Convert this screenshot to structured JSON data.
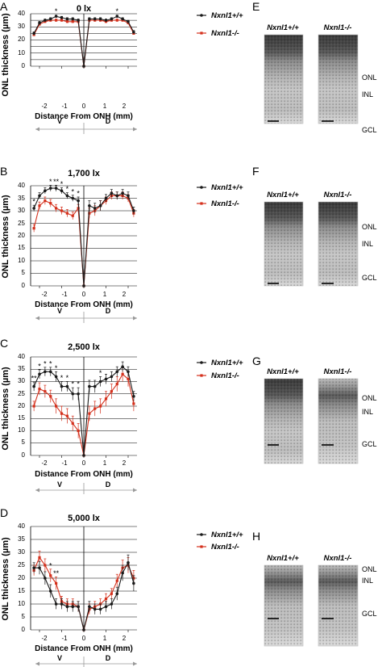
{
  "figure": {
    "ylabel": "ONL thickness (µm)",
    "xlabel": "Distance From ONH (mm)",
    "region_v": "V",
    "region_d": "D",
    "legend_wt": "Nxnl1+/+",
    "legend_ko": "Nxnl1-/-",
    "colors": {
      "wt": "#1a1a1a",
      "ko": "#d4301c"
    }
  },
  "chart_data": [
    {
      "type": "line",
      "panel": "A",
      "title": "0 lx",
      "xlabel": "Distance From ONH (mm)",
      "ylabel": "ONL thickness (µm)",
      "xlim": [
        -2.4,
        2.4
      ],
      "ylim": [
        0,
        40
      ],
      "yticks": [
        0,
        5,
        10,
        15,
        20,
        25,
        30,
        35,
        40
      ],
      "xticks": [
        -2,
        -1,
        0,
        1,
        2
      ],
      "x": [
        -2.25,
        -2.0,
        -1.75,
        -1.5,
        -1.25,
        -1.0,
        -0.75,
        -0.5,
        -0.25,
        0,
        0.25,
        0.5,
        0.75,
        1.0,
        1.25,
        1.5,
        1.75,
        2.0,
        2.25
      ],
      "series": [
        {
          "name": "Nxnl1+/+",
          "values": [
            25,
            33,
            35,
            36,
            38,
            37,
            36,
            36,
            35,
            0,
            36,
            36,
            36,
            35,
            36,
            38,
            36,
            34,
            26
          ],
          "err": [
            1.2,
            1.2,
            1.0,
            1.0,
            1.0,
            1.0,
            1.0,
            1.0,
            1.0,
            0,
            1.0,
            1.0,
            1.0,
            1.0,
            1.0,
            1.0,
            1.0,
            1.0,
            1.2
          ]
        },
        {
          "name": "Nxnl1-/-",
          "values": [
            24,
            32,
            34,
            35,
            35,
            35,
            34,
            34,
            34,
            0,
            35,
            35,
            35,
            34,
            35,
            35,
            35,
            33,
            25
          ],
          "err": [
            1.0,
            1.0,
            1.0,
            1.0,
            1.0,
            1.0,
            1.0,
            1.0,
            1.0,
            0,
            1.0,
            1.0,
            1.0,
            1.0,
            1.0,
            1.0,
            1.0,
            1.0,
            1.0
          ]
        }
      ],
      "annotations": [
        {
          "x": -1.25,
          "text": "*"
        },
        {
          "x": 1.5,
          "text": "*"
        }
      ],
      "legend": "top-right"
    },
    {
      "type": "line",
      "panel": "B",
      "title": "1,700 lx",
      "xlabel": "Distance From ONH (mm)",
      "ylabel": "ONL thickness (µm)",
      "xlim": [
        -2.4,
        2.4
      ],
      "ylim": [
        0,
        40
      ],
      "yticks": [
        0,
        5,
        10,
        15,
        20,
        25,
        30,
        35,
        40
      ],
      "xticks": [
        -2,
        -1,
        0,
        1,
        2
      ],
      "x": [
        -2.25,
        -2.0,
        -1.75,
        -1.5,
        -1.25,
        -1.0,
        -0.75,
        -0.5,
        -0.25,
        0,
        0.25,
        0.5,
        0.75,
        1.0,
        1.25,
        1.5,
        1.75,
        2.0,
        2.25
      ],
      "series": [
        {
          "name": "Nxnl1+/+",
          "values": [
            31,
            36,
            38,
            39,
            39,
            38,
            36,
            35,
            34,
            0,
            32,
            31,
            32,
            35,
            37,
            36,
            37,
            36,
            30
          ],
          "err": [
            1.2,
            1.2,
            1.2,
            1.2,
            1.2,
            1.2,
            1.2,
            1.2,
            1.5,
            0,
            2.0,
            2.0,
            2.0,
            1.5,
            1.5,
            1.5,
            1.5,
            1.5,
            1.5
          ]
        },
        {
          "name": "Nxnl1-/-",
          "values": [
            23,
            32,
            34,
            33,
            31,
            30,
            29,
            28,
            31,
            0,
            29,
            30,
            32,
            34,
            36,
            36,
            36,
            35,
            29
          ],
          "err": [
            1.5,
            1.5,
            1.5,
            1.5,
            1.5,
            1.5,
            1.5,
            1.5,
            1.5,
            0,
            2.0,
            2.0,
            2.0,
            1.5,
            1.5,
            1.5,
            1.5,
            1.5,
            1.5
          ]
        }
      ],
      "annotations": [
        {
          "x": -2.25,
          "text": "*"
        },
        {
          "x": -1.5,
          "text": "*"
        },
        {
          "x": -1.25,
          "text": "**"
        },
        {
          "x": -1.0,
          "text": "*"
        },
        {
          "x": -0.75,
          "text": "*"
        },
        {
          "x": -0.5,
          "text": "*"
        },
        {
          "x": -0.25,
          "text": "*"
        }
      ],
      "legend": "top-right"
    },
    {
      "type": "line",
      "panel": "C",
      "title": "2,500 lx",
      "xlabel": "Distance From ONH (mm)",
      "ylabel": "ONL thickness (µm)",
      "xlim": [
        -2.4,
        2.4
      ],
      "ylim": [
        0,
        40
      ],
      "yticks": [
        0,
        5,
        10,
        15,
        20,
        25,
        30,
        35,
        40
      ],
      "xticks": [
        -2,
        -1,
        0,
        1,
        2
      ],
      "x": [
        -2.25,
        -2.0,
        -1.75,
        -1.5,
        -1.25,
        -1.0,
        -0.75,
        -0.5,
        -0.25,
        0,
        0.25,
        0.5,
        0.75,
        1.0,
        1.25,
        1.5,
        1.75,
        2.0,
        2.25
      ],
      "series": [
        {
          "name": "Nxnl1+/+",
          "values": [
            28,
            33,
            34,
            34,
            32,
            28,
            28,
            25,
            25,
            0,
            28,
            28,
            30,
            31,
            32,
            34,
            36,
            34,
            24
          ],
          "err": [
            1.8,
            1.8,
            1.8,
            1.8,
            2.0,
            2.0,
            2.0,
            2.5,
            2.5,
            0,
            2.5,
            2.5,
            2.0,
            2.0,
            2.0,
            2.0,
            2.0,
            2.0,
            2.0
          ]
        },
        {
          "name": "Nxnl1-/-",
          "values": [
            20,
            27,
            26,
            24,
            20,
            17,
            16,
            13,
            10,
            0,
            17,
            19,
            20,
            23,
            26,
            29,
            33,
            31,
            21
          ],
          "err": [
            2.0,
            2.5,
            2.5,
            2.5,
            3.0,
            3.0,
            3.0,
            3.0,
            3.0,
            0,
            3.0,
            3.0,
            3.0,
            3.0,
            3.0,
            3.0,
            3.0,
            3.0,
            3.0
          ]
        }
      ],
      "annotations": [
        {
          "x": -2.25,
          "text": "**"
        },
        {
          "x": -2.0,
          "text": "*"
        },
        {
          "x": -1.75,
          "text": "*"
        },
        {
          "x": -1.5,
          "text": "*"
        },
        {
          "x": -1.25,
          "text": "*"
        },
        {
          "x": -1.0,
          "text": "*"
        },
        {
          "x": -0.75,
          "text": "*"
        },
        {
          "x": -0.5,
          "text": "*"
        },
        {
          "x": -0.25,
          "text": "*"
        },
        {
          "x": 0.75,
          "text": "*"
        }
      ],
      "legend": "top-right"
    },
    {
      "type": "line",
      "panel": "D",
      "title": "5,000 lx",
      "xlabel": "Distance From ONH (mm)",
      "ylabel": "ONL thickness (µm)",
      "xlim": [
        -2.4,
        2.4
      ],
      "ylim": [
        0,
        40
      ],
      "yticks": [
        0,
        5,
        10,
        15,
        20,
        25,
        30,
        35,
        40
      ],
      "xticks": [
        -2,
        -1,
        0,
        1,
        2
      ],
      "x": [
        -2.25,
        -2.0,
        -1.75,
        -1.5,
        -1.25,
        -1.0,
        -0.75,
        -0.5,
        -0.25,
        0,
        0.25,
        0.5,
        0.75,
        1.0,
        1.25,
        1.5,
        1.75,
        2.0,
        2.25
      ],
      "series": [
        {
          "name": "Nxnl1+/+",
          "values": [
            24,
            24,
            20,
            15,
            10,
            10,
            9,
            9,
            9,
            0,
            9,
            8,
            8,
            9,
            10,
            14,
            22,
            26,
            18
          ],
          "err": [
            2.0,
            2.5,
            2.5,
            2.5,
            2.0,
            2.0,
            2.0,
            2.0,
            2.0,
            0,
            2.0,
            2.0,
            2.0,
            2.0,
            2.0,
            2.5,
            3.0,
            3.0,
            3.0
          ]
        },
        {
          "name": "Nxnl1-/-",
          "values": [
            23,
            28,
            25,
            21,
            18,
            11,
            10,
            10,
            9,
            0,
            8,
            9,
            10,
            12,
            14,
            19,
            24,
            25,
            20
          ],
          "err": [
            2.0,
            2.5,
            2.5,
            2.5,
            2.5,
            2.0,
            2.0,
            2.0,
            2.0,
            0,
            2.0,
            2.0,
            2.0,
            2.0,
            2.0,
            2.5,
            3.0,
            3.0,
            3.0
          ]
        }
      ],
      "annotations": [
        {
          "x": -1.5,
          "text": "*"
        },
        {
          "x": -1.25,
          "text": "**"
        }
      ],
      "legend": "top-right"
    }
  ],
  "histology": [
    {
      "panel": "E",
      "wt_label": "Nxnl1+/+",
      "ko_label": "Nxnl1-/-",
      "layers": [
        "ONL",
        "INL",
        "GCL"
      ]
    },
    {
      "panel": "F",
      "wt_label": "Nxnl1+/+",
      "ko_label": "Nxnl1-/-",
      "layers": [
        "ONL",
        "INL",
        "GCL"
      ]
    },
    {
      "panel": "G",
      "wt_label": "Nxnl1+/+",
      "ko_label": "Nxnl1-/-",
      "layers": [
        "ONL",
        "INL",
        "GCL"
      ]
    },
    {
      "panel": "H",
      "wt_label": "Nxnl1+/+",
      "ko_label": "Nxnl1-/-",
      "layers": [
        "ONL",
        "INL",
        "GCL"
      ]
    }
  ]
}
